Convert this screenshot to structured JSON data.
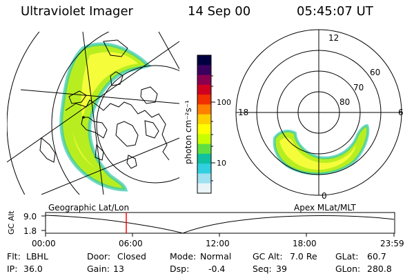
{
  "header": {
    "instrument": "Ultraviolet Imager",
    "date": "14 Sep 00",
    "time": "05:45:07 UT"
  },
  "colorbar": {
    "unit": "photon cm⁻²s⁻¹",
    "ticks": [
      "100",
      "10"
    ],
    "colors": [
      "#000040",
      "#3a0060",
      "#8a0050",
      "#d00020",
      "#f03000",
      "#ff8000",
      "#ffd000",
      "#ffff00",
      "#c8ff00",
      "#60e040",
      "#10c0a0",
      "#30d0e0",
      "#a0e0f0",
      "#e8f4f8"
    ]
  },
  "map_labels": {
    "left": "Geographic Lat/Lon",
    "right": "Apex MLat/MLT"
  },
  "polar": {
    "mlt_labels": {
      "top": "12",
      "left": "18",
      "right": "6",
      "bottom": "0"
    },
    "lat_labels": [
      "60",
      "70",
      "80"
    ]
  },
  "timeline": {
    "ylabel": "GC Alt",
    "y_ticks": [
      "9.0",
      "1.8"
    ],
    "x_ticks": [
      "00:00",
      "06:00",
      "12:00",
      "18:00",
      "23:59"
    ],
    "current_time_marker": "05:45"
  },
  "info_rows": [
    [
      {
        "label": "Flt:",
        "value": "LBHL"
      },
      {
        "label": "Door:",
        "value": "Closed"
      },
      {
        "label": "Mode:",
        "value": "Normal"
      },
      {
        "label": "GC Alt:",
        "value": "7.0 Re"
      },
      {
        "label": "GLat:",
        "value": "60.7"
      }
    ],
    [
      {
        "label": "IP:",
        "value": "36.0"
      },
      {
        "label": "Gain:",
        "value": "13"
      },
      {
        "label": "Dsp:",
        "value": "-0.4"
      },
      {
        "label": "Seq:",
        "value": "39"
      },
      {
        "label": "GLon:",
        "value": "280.8"
      }
    ]
  ],
  "colors": {
    "marker": "#ff0000",
    "line": "#000000"
  }
}
